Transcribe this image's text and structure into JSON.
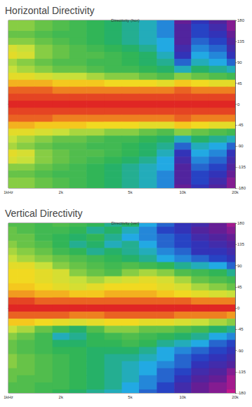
{
  "chart_data": [
    {
      "type": "heatmap",
      "title": "Horizontal Directivity",
      "subtitle": "Directivity (hor)",
      "x": [
        1000,
        1250,
        1600,
        2000,
        2500,
        3150,
        4000,
        5000,
        6300,
        8000,
        10000,
        12500,
        16000,
        20000
      ],
      "y": [
        180,
        165,
        150,
        135,
        120,
        105,
        90,
        75,
        60,
        45,
        30,
        15,
        0,
        -15,
        -30,
        -45,
        -60,
        -75,
        -90,
        -105,
        -120,
        -135,
        -150,
        -165,
        -180
      ],
      "cells": [
        [
          -12,
          -12,
          -13,
          -14,
          -15,
          -16,
          -17,
          -18,
          -19,
          -21,
          -27,
          -24,
          -26,
          -28
        ],
        [
          -12,
          -12,
          -13,
          -14,
          -15,
          -16,
          -17,
          -18,
          -19,
          -21,
          -26,
          -23,
          -25,
          -28
        ],
        [
          -13,
          -13,
          -14,
          -15,
          -15,
          -16,
          -17,
          -18,
          -19,
          -21,
          -26,
          -23,
          -24,
          -27
        ],
        [
          -12,
          -12,
          -13,
          -14,
          -15,
          -16,
          -17,
          -18,
          -19,
          -20,
          -26,
          -22,
          -23,
          -26
        ],
        [
          -9,
          -10,
          -12,
          -13,
          -14,
          -15,
          -16,
          -17,
          -18,
          -20,
          -25,
          -21,
          -22,
          -25
        ],
        [
          -8,
          -9,
          -12,
          -13,
          -14,
          -14,
          -15,
          -16,
          -17,
          -19,
          -24,
          -20,
          -21,
          -24
        ],
        [
          -11,
          -12,
          -13,
          -14,
          -14,
          -15,
          -15,
          -16,
          -17,
          -18,
          -22,
          -19,
          -20,
          -22
        ],
        [
          -10,
          -11,
          -12,
          -13,
          -13,
          -14,
          -15,
          -15,
          -16,
          -17,
          -19,
          -17,
          -18,
          -19
        ],
        [
          -8,
          -8,
          -9,
          -10,
          -10,
          -11,
          -12,
          -12,
          -13,
          -14,
          -12,
          -13,
          -14,
          -15
        ],
        [
          -5,
          -5,
          -5,
          -6,
          -6,
          -6,
          -7,
          -7,
          -7,
          -8,
          -6,
          -7,
          -8,
          -8
        ],
        [
          -2,
          -2,
          -2,
          -3,
          -3,
          -3,
          -3,
          -3,
          -3,
          -3,
          -2,
          -3,
          -3,
          -3
        ],
        [
          -1,
          -1,
          -1,
          -1,
          -1,
          -1,
          -1,
          -1,
          -1,
          -1,
          -1,
          -1,
          -1,
          -1
        ],
        [
          0,
          0,
          0,
          0,
          0,
          0,
          0,
          0,
          0,
          0,
          0,
          0,
          0,
          0
        ],
        [
          -1,
          -1,
          -1,
          -1,
          -1,
          -1,
          -1,
          -1,
          -1,
          -1,
          -1,
          -1,
          -1,
          -1
        ],
        [
          -2,
          -2,
          -2,
          -3,
          -3,
          -3,
          -3,
          -3,
          -3,
          -3,
          -2,
          -3,
          -3,
          -3
        ],
        [
          -5,
          -5,
          -6,
          -6,
          -6,
          -7,
          -7,
          -7,
          -8,
          -8,
          -6,
          -7,
          -8,
          -8
        ],
        [
          -8,
          -8,
          -9,
          -10,
          -11,
          -11,
          -12,
          -12,
          -13,
          -14,
          -12,
          -13,
          -14,
          -15
        ],
        [
          -10,
          -11,
          -12,
          -13,
          -13,
          -14,
          -15,
          -15,
          -16,
          -17,
          -19,
          -17,
          -18,
          -19
        ],
        [
          -11,
          -12,
          -13,
          -14,
          -14,
          -15,
          -15,
          -16,
          -17,
          -18,
          -22,
          -19,
          -20,
          -22
        ],
        [
          -8,
          -9,
          -12,
          -13,
          -14,
          -14,
          -15,
          -16,
          -17,
          -19,
          -24,
          -20,
          -21,
          -24
        ],
        [
          -9,
          -10,
          -12,
          -13,
          -14,
          -15,
          -16,
          -17,
          -18,
          -20,
          -25,
          -21,
          -22,
          -25
        ],
        [
          -12,
          -12,
          -13,
          -14,
          -15,
          -16,
          -17,
          -18,
          -19,
          -20,
          -26,
          -22,
          -23,
          -26
        ],
        [
          -13,
          -13,
          -14,
          -15,
          -15,
          -16,
          -17,
          -18,
          -19,
          -21,
          -26,
          -23,
          -24,
          -27
        ],
        [
          -12,
          -12,
          -13,
          -14,
          -15,
          -16,
          -17,
          -18,
          -19,
          -21,
          -26,
          -23,
          -25,
          -28
        ],
        [
          -12,
          -12,
          -13,
          -14,
          -15,
          -16,
          -17,
          -18,
          -19,
          -21,
          -27,
          -24,
          -26,
          -28
        ]
      ],
      "color_range": [
        -30,
        0
      ],
      "log": "x",
      "grid": false,
      "xlim": [
        1000,
        20000
      ],
      "xticks": [
        {
          "value": 1000,
          "label": "1kHz"
        },
        {
          "value": 2000,
          "label": "2k"
        },
        {
          "value": 5000,
          "label": "5k"
        },
        {
          "value": 10000,
          "label": "10k"
        },
        {
          "value": 20000,
          "label": "20k"
        }
      ],
      "ylim": [
        -180,
        180
      ],
      "yticks": [
        -180,
        -135,
        -90,
        -45,
        0,
        45,
        90,
        135,
        180
      ]
    },
    {
      "type": "heatmap",
      "title": "Vertical Directivity",
      "subtitle": "Directivity (ver)",
      "x": [
        1000,
        1250,
        1600,
        2000,
        2500,
        3150,
        4000,
        5000,
        6300,
        8000,
        10000,
        12500,
        16000,
        20000
      ],
      "y": [
        180,
        165,
        150,
        135,
        120,
        105,
        90,
        75,
        60,
        45,
        30,
        15,
        0,
        -15,
        -30,
        -45,
        -60,
        -75,
        -90,
        -105,
        -120,
        -135,
        -150,
        -165,
        -180
      ],
      "cells": [
        [
          -14,
          -14,
          -15,
          -14,
          -15,
          -16,
          -18,
          -17,
          -20,
          -22,
          -24,
          -25,
          -27,
          -29
        ],
        [
          -13,
          -14,
          -15,
          -15,
          -16,
          -18,
          -17,
          -19,
          -21,
          -23,
          -24,
          -26,
          -27,
          -28
        ],
        [
          -13,
          -13,
          -15,
          -16,
          -17,
          -16,
          -18,
          -20,
          -21,
          -22,
          -23,
          -25,
          -26,
          -27
        ],
        [
          -12,
          -13,
          -14,
          -16,
          -18,
          -17,
          -19,
          -18,
          -20,
          -22,
          -23,
          -24,
          -25,
          -26
        ],
        [
          -11,
          -12,
          -13,
          -15,
          -16,
          -18,
          -17,
          -18,
          -19,
          -21,
          -22,
          -24,
          -24,
          -25
        ],
        [
          -10,
          -11,
          -12,
          -13,
          -14,
          -15,
          -16,
          -17,
          -18,
          -20,
          -21,
          -22,
          -23,
          -24
        ],
        [
          -8,
          -8,
          -10,
          -12,
          -13,
          -14,
          -15,
          -14,
          -15,
          -16,
          -18,
          -19,
          -20,
          -22
        ],
        [
          -7,
          -7,
          -8,
          -9,
          -12,
          -13,
          -14,
          -12,
          -11,
          -12,
          -14,
          -15,
          -16,
          -18
        ],
        [
          -7,
          -7,
          -8,
          -9,
          -10,
          -11,
          -10,
          -9,
          -8,
          -9,
          -11,
          -13,
          -14,
          -15
        ],
        [
          -6,
          -6,
          -7,
          -8,
          -9,
          -8,
          -7,
          -7,
          -7,
          -8,
          -9,
          -11,
          -12,
          -13
        ],
        [
          -4,
          -4,
          -5,
          -5,
          -6,
          -6,
          -5,
          -5,
          -5,
          -6,
          -7,
          -8,
          -9,
          -10
        ],
        [
          -1,
          -1,
          -2,
          -2,
          -2,
          -2,
          -2,
          -2,
          -2,
          -2,
          -2,
          -3,
          -3,
          -3
        ],
        [
          0,
          0,
          0,
          0,
          0,
          0,
          0,
          0,
          0,
          0,
          0,
          0,
          0,
          0
        ],
        [
          -2,
          -2,
          -2,
          -2,
          -3,
          -3,
          -2,
          -2,
          -2,
          -2,
          -3,
          -3,
          -3,
          -4
        ],
        [
          -6,
          -6,
          -7,
          -8,
          -9,
          -8,
          -7,
          -7,
          -8,
          -8,
          -9,
          -10,
          -11,
          -12
        ],
        [
          -10,
          -11,
          -13,
          -15,
          -17,
          -14,
          -12,
          -12,
          -13,
          -13,
          -14,
          -15,
          -17,
          -18
        ],
        [
          -12,
          -13,
          -15,
          -19,
          -18,
          -16,
          -15,
          -14,
          -15,
          -16,
          -17,
          -18,
          -20,
          -21
        ],
        [
          -13,
          -14,
          -15,
          -17,
          -17,
          -16,
          -16,
          -15,
          -16,
          -18,
          -19,
          -20,
          -22,
          -23
        ],
        [
          -13,
          -14,
          -15,
          -16,
          -16,
          -17,
          -17,
          -17,
          -18,
          -20,
          -21,
          -22,
          -23,
          -24
        ],
        [
          -12,
          -13,
          -14,
          -15,
          -16,
          -17,
          -18,
          -18,
          -19,
          -20,
          -22,
          -23,
          -24,
          -25
        ],
        [
          -12,
          -13,
          -14,
          -15,
          -16,
          -17,
          -18,
          -19,
          -20,
          -21,
          -22,
          -24,
          -25,
          -26
        ],
        [
          -13,
          -13,
          -14,
          -15,
          -16,
          -17,
          -18,
          -19,
          -20,
          -22,
          -23,
          -25,
          -26,
          -28
        ],
        [
          -13,
          -14,
          -14,
          -15,
          -16,
          -17,
          -18,
          -19,
          -21,
          -22,
          -24,
          -26,
          -27,
          -29
        ],
        [
          -14,
          -14,
          -15,
          -15,
          -16,
          -17,
          -18,
          -20,
          -21,
          -23,
          -25,
          -27,
          -28,
          -29
        ],
        [
          -14,
          -14,
          -15,
          -16,
          -17,
          -18,
          -19,
          -20,
          -22,
          -23,
          -25,
          -27,
          -28,
          -30
        ]
      ],
      "color_range": [
        -30,
        0
      ],
      "log": "x",
      "grid": false,
      "xlim": [
        1000,
        20000
      ],
      "xticks": [
        {
          "value": 1000,
          "label": "1kHz"
        },
        {
          "value": 2000,
          "label": "2k"
        },
        {
          "value": 5000,
          "label": "5k"
        },
        {
          "value": 10000,
          "label": "10k"
        },
        {
          "value": 20000,
          "label": "20k"
        }
      ],
      "ylim": [
        -180,
        180
      ],
      "yticks": [
        -180,
        -135,
        -90,
        -45,
        0,
        45,
        90,
        135,
        180
      ]
    }
  ]
}
